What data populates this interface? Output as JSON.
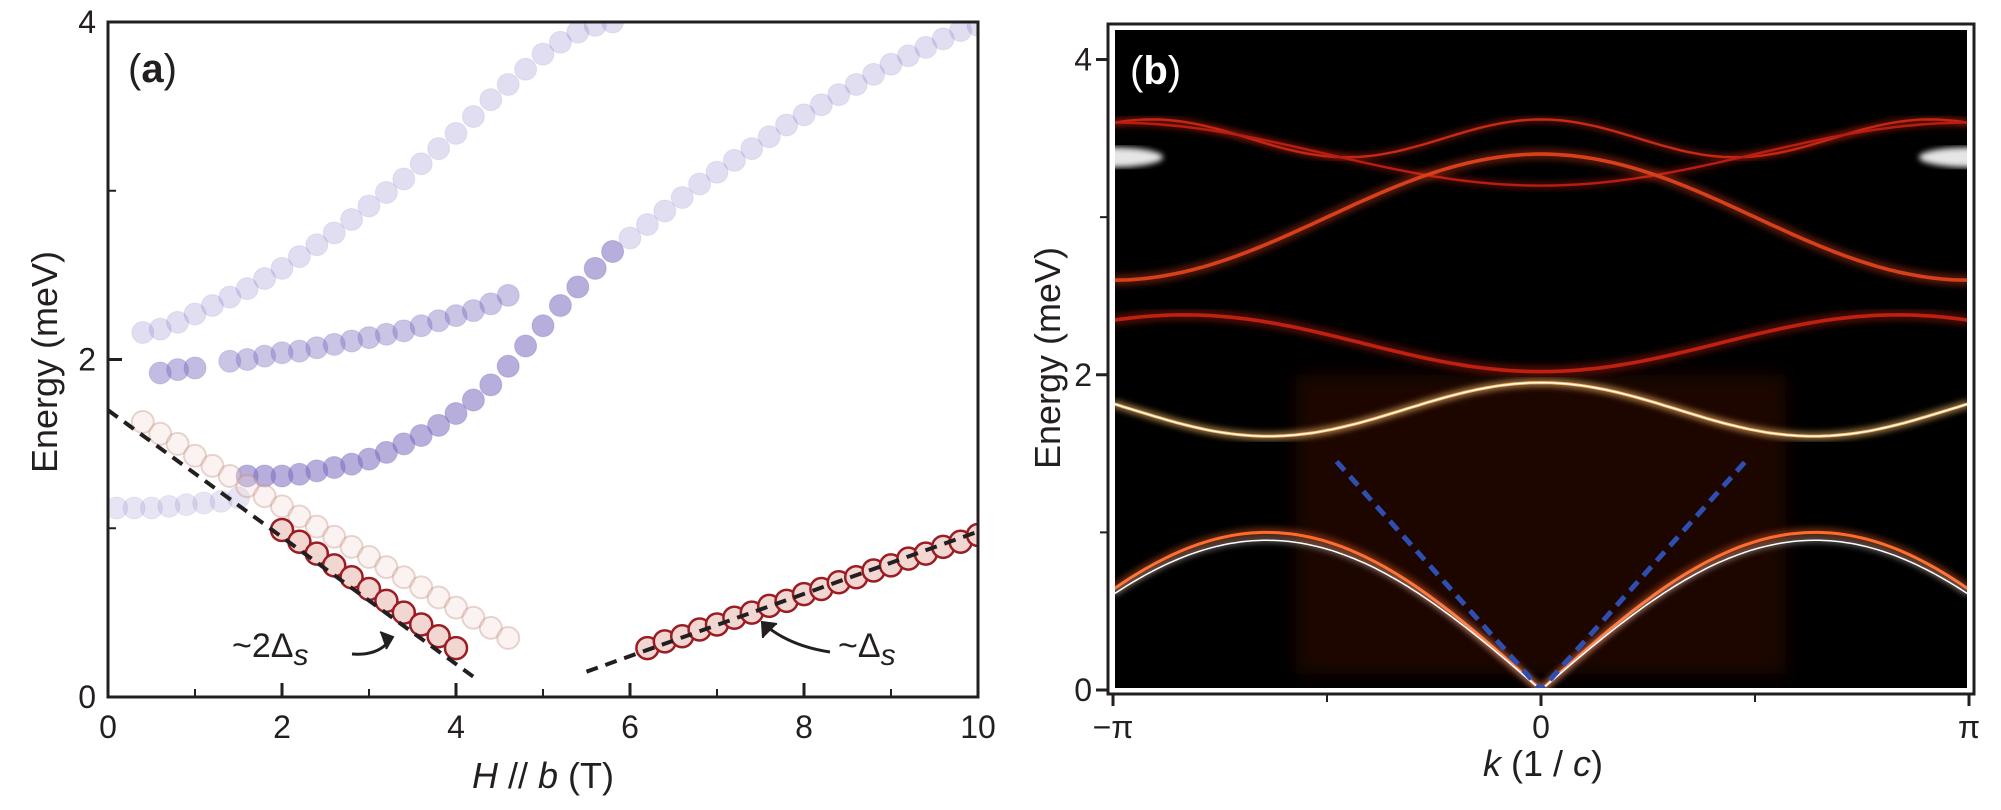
{
  "colors": {
    "purple": "#7b6bbf",
    "red_marker": "#9b1c22",
    "red_fill": "#f2d6d2",
    "dashed_black": "#231f20",
    "dashed_blue": "#2f4fb0",
    "map_background": "#000000"
  },
  "chart_data": [
    {
      "panel": "(a)",
      "type": "scatter",
      "xlabel_parts": [
        "H",
        " // ",
        "b",
        " (T)"
      ],
      "ylabel": "Energy (meV)",
      "xlim": [
        0,
        10
      ],
      "ylim": [
        0,
        4
      ],
      "xticks": [
        "0",
        "2",
        "4",
        "6",
        "8",
        "10"
      ],
      "yticks": [
        "0",
        "2",
        "4"
      ],
      "grid": false,
      "series": [
        {
          "style": "purple-filled",
          "opacity": 0.18,
          "x": [
            0.1,
            0.3,
            0.5,
            0.7,
            0.9,
            1.1,
            1.3,
            1.5
          ],
          "y": [
            1.12,
            1.12,
            1.12,
            1.13,
            1.14,
            1.15,
            1.16,
            1.18
          ]
        },
        {
          "style": "purple-filled",
          "opacity": 0.22,
          "x": [
            0.4,
            0.6,
            0.8,
            1.0,
            1.2,
            1.4,
            1.6,
            1.8,
            2.0,
            2.2,
            2.4,
            2.6,
            2.8,
            3.0,
            3.2,
            3.4,
            3.6,
            3.8,
            4.0,
            4.2,
            4.4,
            4.6,
            4.8,
            5.0,
            5.2,
            5.4,
            5.6,
            5.8
          ],
          "y": [
            2.16,
            2.18,
            2.22,
            2.27,
            2.32,
            2.37,
            2.42,
            2.48,
            2.54,
            2.61,
            2.68,
            2.75,
            2.83,
            2.91,
            2.99,
            3.07,
            3.16,
            3.25,
            3.34,
            3.44,
            3.54,
            3.63,
            3.72,
            3.81,
            3.88,
            3.94,
            3.98,
            4.0
          ]
        },
        {
          "style": "purple-filled",
          "opacity": 0.45,
          "x": [
            0.6,
            0.8,
            1.0
          ],
          "y": [
            1.92,
            1.94,
            1.95
          ]
        },
        {
          "style": "purple-filled",
          "opacity": 0.4,
          "x": [
            1.4,
            1.6,
            1.8,
            2.0,
            2.2,
            2.4,
            2.6,
            2.8,
            3.0,
            3.2,
            3.4,
            3.6,
            3.8,
            4.0,
            4.2,
            4.4,
            4.6
          ],
          "y": [
            1.99,
            2.0,
            2.02,
            2.04,
            2.05,
            2.07,
            2.09,
            2.11,
            2.13,
            2.15,
            2.17,
            2.2,
            2.23,
            2.26,
            2.29,
            2.33,
            2.38
          ]
        },
        {
          "style": "purple-filled",
          "opacity": 0.55,
          "x": [
            1.6,
            1.8,
            2.0,
            2.2,
            2.4,
            2.6,
            2.8,
            3.0,
            3.2,
            3.4,
            3.6,
            3.8,
            4.0,
            4.2,
            4.4,
            4.6,
            4.8,
            5.0,
            5.2,
            5.4,
            5.6,
            5.8
          ],
          "y": [
            1.31,
            1.31,
            1.31,
            1.32,
            1.34,
            1.36,
            1.38,
            1.41,
            1.45,
            1.5,
            1.55,
            1.61,
            1.68,
            1.76,
            1.85,
            1.96,
            2.08,
            2.2,
            2.32,
            2.43,
            2.54,
            2.64
          ]
        },
        {
          "style": "purple-filled",
          "opacity": 0.22,
          "x": [
            6.0,
            6.2,
            6.4,
            6.6,
            6.8,
            7.0,
            7.2,
            7.4,
            7.6,
            7.8,
            8.0,
            8.2,
            8.4,
            8.6,
            8.8,
            9.0,
            9.2,
            9.4,
            9.6,
            9.8,
            10.0
          ],
          "y": [
            2.72,
            2.8,
            2.88,
            2.96,
            3.04,
            3.11,
            3.18,
            3.25,
            3.32,
            3.39,
            3.45,
            3.51,
            3.57,
            3.63,
            3.69,
            3.75,
            3.8,
            3.85,
            3.9,
            3.95,
            3.98
          ]
        },
        {
          "style": "red-open-faint",
          "opacity": 0.35,
          "x": [
            0.4,
            0.6,
            0.8,
            1.0,
            1.2,
            1.4,
            1.6,
            1.8,
            2.0,
            2.2,
            2.4,
            2.6,
            2.8,
            3.0,
            3.2,
            3.4,
            3.6,
            3.8,
            4.0,
            4.2,
            4.4,
            4.6
          ],
          "y": [
            1.63,
            1.56,
            1.5,
            1.43,
            1.37,
            1.31,
            1.25,
            1.19,
            1.13,
            1.07,
            1.01,
            0.95,
            0.89,
            0.83,
            0.77,
            0.71,
            0.65,
            0.59,
            0.53,
            0.47,
            0.41,
            0.35
          ]
        },
        {
          "style": "red-open",
          "opacity": 1,
          "x": [
            2.0,
            2.2,
            2.4,
            2.6,
            2.8,
            3.0,
            3.2,
            3.4,
            3.6,
            3.8,
            4.0
          ],
          "y": [
            0.99,
            0.92,
            0.85,
            0.78,
            0.71,
            0.64,
            0.57,
            0.5,
            0.43,
            0.36,
            0.29
          ]
        },
        {
          "style": "red-open",
          "opacity": 1,
          "x": [
            6.2,
            6.4,
            6.6,
            6.8,
            7.0,
            7.2,
            7.4,
            7.6,
            7.8,
            8.0,
            8.2,
            8.4,
            8.6,
            8.8,
            9.0,
            9.2,
            9.4,
            9.6,
            9.8,
            10.0
          ],
          "y": [
            0.29,
            0.33,
            0.36,
            0.4,
            0.43,
            0.47,
            0.5,
            0.54,
            0.57,
            0.61,
            0.64,
            0.68,
            0.71,
            0.75,
            0.78,
            0.82,
            0.85,
            0.89,
            0.92,
            0.96
          ]
        }
      ],
      "lines": [
        {
          "style": "dashed-black",
          "x": [
            0,
            4.2
          ],
          "y": [
            1.7,
            0.12
          ]
        },
        {
          "style": "dashed-black",
          "x": [
            5.5,
            10.0
          ],
          "y": [
            0.15,
            0.98
          ]
        }
      ],
      "annotations": [
        {
          "text_parts": [
            "~2",
            "Δ",
            "s"
          ]
        },
        {
          "text_parts": [
            "~",
            "Δ",
            "s"
          ]
        }
      ]
    },
    {
      "panel": "(b)",
      "type": "heatmap",
      "xlabel_parts": [
        "k",
        " (1 / ",
        "c",
        ")"
      ],
      "ylabel": "Energy (meV)",
      "xlim": [
        -3.1416,
        3.1416
      ],
      "ylim": [
        0,
        4.2
      ],
      "xticks": [
        "−π",
        "0",
        "π"
      ],
      "yticks": [
        "0",
        "2",
        "4"
      ],
      "colormap": "black-red-yellow-white",
      "dispersion_branches_meV": [
        {
          "name": "",
          "description": "lower acoustic branch, zero at k=0, max ~1.0 meV near k=±2"
        },
        {
          "name": "",
          "description": "band ~1.6–1.95 meV, minimum at k=±2, maximum at k=0"
        },
        {
          "name": "",
          "description": "band ~2.2 meV at zone edge"
        },
        {
          "name": "",
          "description": "upper band ~3.4–3.6 meV with crossing at k=0"
        }
      ],
      "lines": [
        {
          "style": "dashed-blue",
          "x": [
            -1.5,
            0,
            1.5
          ],
          "y": [
            1.45,
            0,
            1.45
          ]
        }
      ]
    }
  ]
}
